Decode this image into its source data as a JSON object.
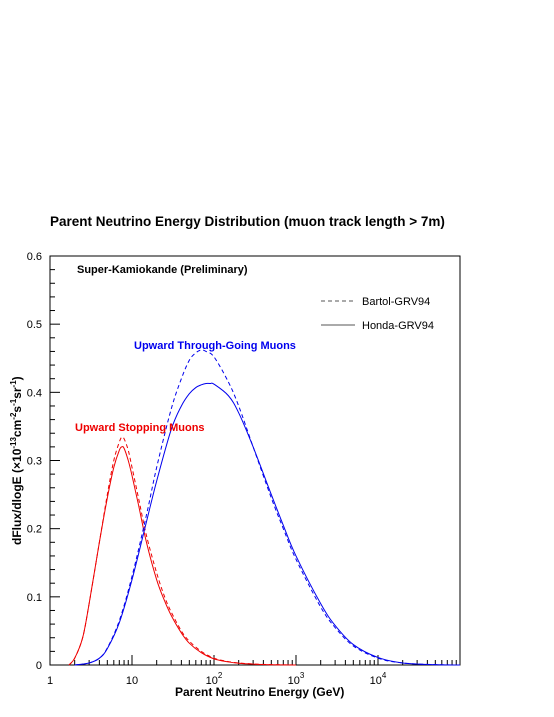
{
  "chart_data": {
    "type": "line",
    "title": "Parent Neutrino Energy Distribution (muon track length > 7m)",
    "experiment_label": "Super-Kamiokande (Preliminary)",
    "xlabel": "Parent Neutrino Energy (GeV)",
    "ylabel": {
      "prefix": "dFlux/dlogE (",
      "times": "×",
      "mantissa": "10",
      "exp1": "-13",
      "unit1": "cm",
      "exp2": "-2",
      "unit2": "s",
      "exp3": "-1",
      "unit3": "sr",
      "exp4": "-1",
      "suffix": ")"
    },
    "x_scale": "log",
    "xlim": [
      1,
      100000
    ],
    "ylim": [
      0,
      0.6
    ],
    "x_ticks": [
      {
        "value": 1,
        "label": "1",
        "exp": ""
      },
      {
        "value": 10,
        "label": "10",
        "exp": ""
      },
      {
        "value": 100,
        "label": "10",
        "exp": "2"
      },
      {
        "value": 1000,
        "label": "10",
        "exp": "3"
      },
      {
        "value": 10000,
        "label": "10",
        "exp": "4"
      }
    ],
    "y_ticks": [
      "0",
      "0.1",
      "0.2",
      "0.3",
      "0.4",
      "0.5",
      "0.6"
    ],
    "legend": {
      "position": "top-right",
      "entries": [
        {
          "name": "Bartol-GRV94",
          "style": "dashed"
        },
        {
          "name": "Honda-GRV94",
          "style": "solid"
        }
      ]
    },
    "annotations": [
      {
        "text": "Upward Through-Going Muons",
        "color": "#0000ee"
      },
      {
        "text": "Upward Stopping Muons",
        "color": "#ee0000"
      }
    ],
    "series": [
      {
        "group": "Upward Stopping Muons",
        "model": "Bartol-GRV94",
        "color": "#ee0000",
        "style": "dashed",
        "x": [
          1.7,
          2,
          2.5,
          3,
          4,
          5,
          6,
          7,
          7.5,
          8,
          9,
          10,
          12,
          15,
          20,
          25,
          30,
          40,
          50,
          70,
          100,
          150,
          200,
          300,
          500,
          1000
        ],
        "y": [
          0.0,
          0.01,
          0.04,
          0.09,
          0.18,
          0.25,
          0.3,
          0.327,
          0.334,
          0.332,
          0.315,
          0.29,
          0.245,
          0.19,
          0.135,
          0.1,
          0.078,
          0.05,
          0.035,
          0.02,
          0.01,
          0.005,
          0.003,
          0.0015,
          0.0005,
          0.0
        ]
      },
      {
        "group": "Upward Stopping Muons",
        "model": "Honda-GRV94",
        "color": "#ee0000",
        "style": "solid",
        "x": [
          1.7,
          2,
          2.5,
          3,
          4,
          5,
          6,
          7,
          7.5,
          8,
          9,
          10,
          12,
          15,
          20,
          25,
          30,
          40,
          50,
          70,
          100,
          150,
          200,
          300,
          500,
          1000
        ],
        "y": [
          0.0,
          0.01,
          0.04,
          0.09,
          0.18,
          0.245,
          0.29,
          0.315,
          0.32,
          0.318,
          0.3,
          0.278,
          0.235,
          0.18,
          0.125,
          0.094,
          0.073,
          0.047,
          0.032,
          0.018,
          0.009,
          0.0045,
          0.0025,
          0.0012,
          0.0004,
          0.0
        ]
      },
      {
        "group": "Upward Through-Going Muons",
        "model": "Bartol-GRV94",
        "color": "#0000ee",
        "style": "dashed",
        "x": [
          2,
          3,
          4,
          5,
          7,
          10,
          15,
          20,
          30,
          40,
          50,
          60,
          70,
          80,
          100,
          150,
          200,
          300,
          500,
          700,
          1000,
          2000,
          3000,
          5000,
          10000,
          20000,
          50000,
          100000
        ],
        "y": [
          0.0,
          0.003,
          0.01,
          0.025,
          0.065,
          0.13,
          0.22,
          0.29,
          0.375,
          0.42,
          0.447,
          0.458,
          0.462,
          0.46,
          0.452,
          0.415,
          0.38,
          0.32,
          0.245,
          0.2,
          0.155,
          0.085,
          0.055,
          0.028,
          0.01,
          0.003,
          0.0005,
          0.0
        ]
      },
      {
        "group": "Upward Through-Going Muons",
        "model": "Honda-GRV94",
        "color": "#0000ee",
        "style": "solid",
        "x": [
          2,
          3,
          4,
          5,
          7,
          10,
          15,
          20,
          30,
          40,
          50,
          60,
          70,
          80,
          90,
          100,
          150,
          200,
          300,
          500,
          700,
          1000,
          2000,
          3000,
          5000,
          10000,
          20000,
          50000,
          100000
        ],
        "y": [
          0.0,
          0.003,
          0.01,
          0.024,
          0.062,
          0.125,
          0.21,
          0.27,
          0.345,
          0.38,
          0.398,
          0.407,
          0.411,
          0.413,
          0.413,
          0.412,
          0.395,
          0.37,
          0.32,
          0.25,
          0.205,
          0.16,
          0.09,
          0.058,
          0.03,
          0.011,
          0.003,
          0.0005,
          0.0
        ]
      }
    ]
  }
}
